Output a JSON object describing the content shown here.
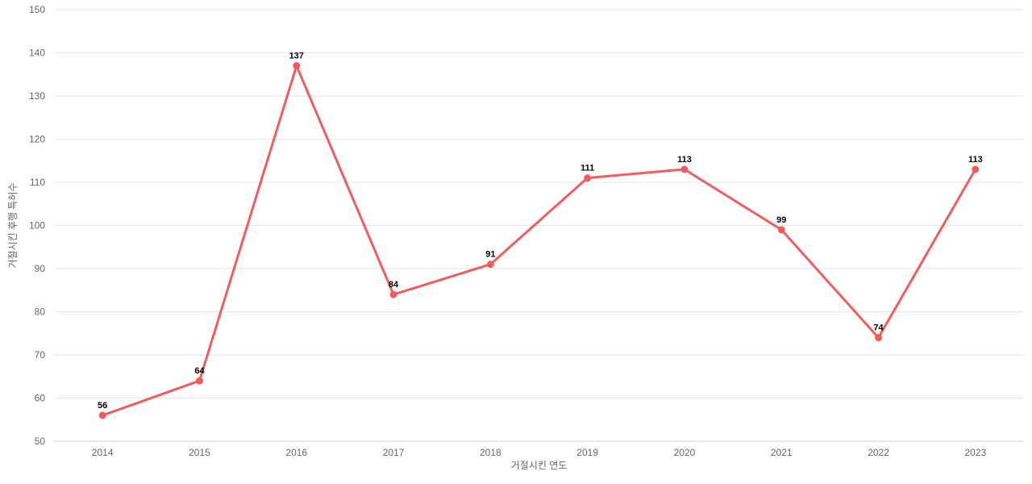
{
  "chart_data": {
    "type": "line",
    "categories": [
      "2014",
      "2015",
      "2016",
      "2017",
      "2018",
      "2019",
      "2020",
      "2021",
      "2022",
      "2023"
    ],
    "values": [
      56,
      64,
      137,
      84,
      91,
      111,
      113,
      99,
      74,
      113
    ],
    "title": "",
    "xlabel": "거절시킨 연도",
    "ylabel": "거절시킨 후행 특허수",
    "ylim": [
      50,
      150
    ],
    "ytick_step": 10,
    "grid": true,
    "legend": "none",
    "data_labels": true,
    "colors": {
      "series": "#f45c5c",
      "marker": "#f45c5c",
      "gridline": "#e6e6e6",
      "axis_line": "#ccd6eb",
      "tick_label": "#666666",
      "axis_title": "#666666",
      "data_label": "#000000",
      "background": "#ffffff"
    }
  }
}
